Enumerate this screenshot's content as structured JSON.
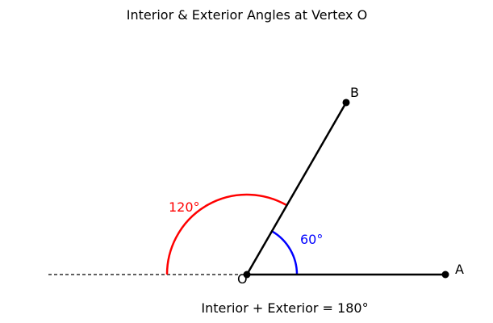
{
  "title": "Interior & Exterior Angles at Vertex O",
  "caption": "Interior + Exterior = 180°",
  "points": {
    "O": "O",
    "A": "A",
    "B": "B"
  },
  "angles": {
    "interior": {
      "degrees": 60,
      "label": "60°",
      "color": "#0000ff"
    },
    "exterior": {
      "degrees": 120,
      "label": "120°",
      "color": "#ff0000"
    }
  },
  "colors": {
    "rays": "#000000",
    "extension": "#000000",
    "points": "#000000"
  }
}
